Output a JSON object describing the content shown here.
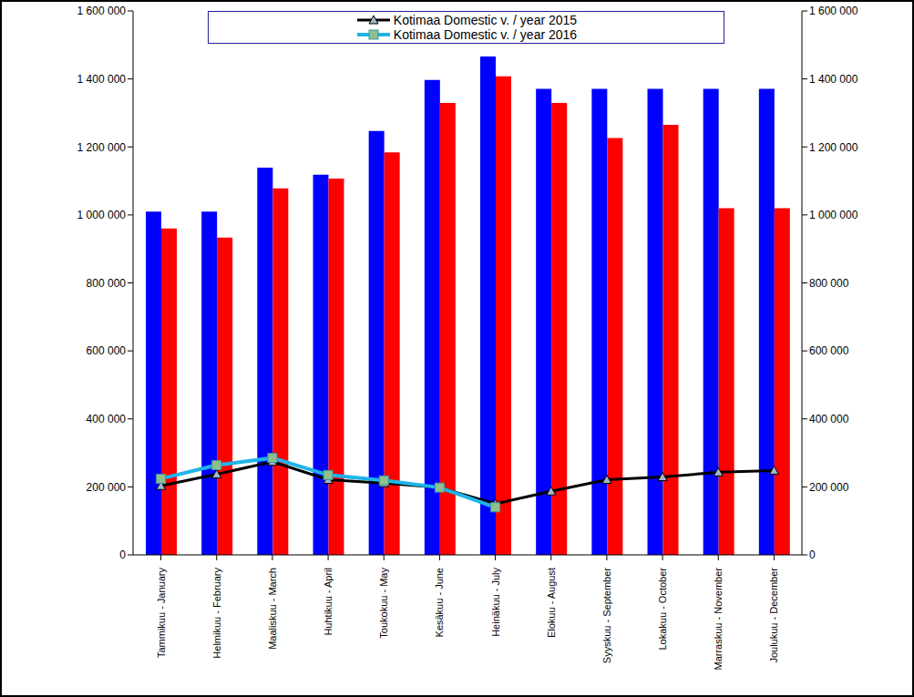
{
  "chart_data": {
    "type": "bar",
    "categories": [
      "Tammikuu - January",
      "Helmikuu - February",
      "Maaliskuu - March",
      "Huhtikuu - April",
      "Toukokuu - May",
      "Kesäkuu - June",
      "Heinäkuu - July",
      "Elokuu - August",
      "Syyskuu - September",
      "Lokakuu - October",
      "Marraskuu - November",
      "Joulukuu - December"
    ],
    "series": [
      {
        "type": "bar",
        "color": "#0000ff",
        "values": [
          1010000,
          1010000,
          1139000,
          1118000,
          1247000,
          1397000,
          1466000,
          1371000,
          1371000,
          1371000,
          1371000,
          1371000
        ]
      },
      {
        "type": "bar",
        "color": "#ff0000",
        "values": [
          960000,
          933000,
          1078000,
          1107000,
          1184000,
          1329000,
          1408000,
          1329000,
          1226000,
          1265000,
          1020000,
          1020000
        ]
      },
      {
        "type": "line",
        "name": "Kotimaa Domestic v. / year 2015",
        "color": "#000000",
        "marker": "triangle",
        "values": [
          203000,
          237000,
          274000,
          221000,
          211000,
          198000,
          150000,
          187000,
          221000,
          229000,
          243000,
          248000
        ]
      },
      {
        "type": "line",
        "name": "Kotimaa Domestic v. / year 2016",
        "color": "#1fb4e8",
        "marker": "square",
        "values": [
          224000,
          264000,
          285000,
          235000,
          219000,
          198000,
          140000,
          null,
          null,
          null,
          null,
          null
        ]
      }
    ],
    "ylim": [
      0,
      1600000
    ],
    "yticks": [
      0,
      {
        "value": 200000,
        "label": "200 000"
      },
      {
        "value": 400000,
        "label": "400 000"
      },
      {
        "value": 600000,
        "label": "600 000"
      },
      {
        "value": 800000,
        "label": "800 000"
      },
      {
        "value": 1000000,
        "label": "1 000 000"
      },
      {
        "value": 1200000,
        "label": "1 200 000"
      },
      {
        "value": 1400000,
        "label": "1 400 000"
      },
      {
        "value": 1600000,
        "label": "1 600 000"
      }
    ],
    "y2lim": [
      0,
      1600000
    ],
    "y2ticks": [
      0,
      {
        "value": 200000,
        "label": "200 000"
      },
      {
        "value": 400000,
        "label": "400 000"
      },
      {
        "value": 600000,
        "label": "600 000"
      },
      {
        "value": 800000,
        "label": "800 000"
      },
      {
        "value": 1000000,
        "label": "1 000 000"
      },
      {
        "value": 1200000,
        "label": "1 200 000"
      },
      {
        "value": 1400000,
        "label": "1 400 000"
      },
      {
        "value": 1600000,
        "label": "1 600 000"
      }
    ],
    "grid": false,
    "legend": "top"
  }
}
